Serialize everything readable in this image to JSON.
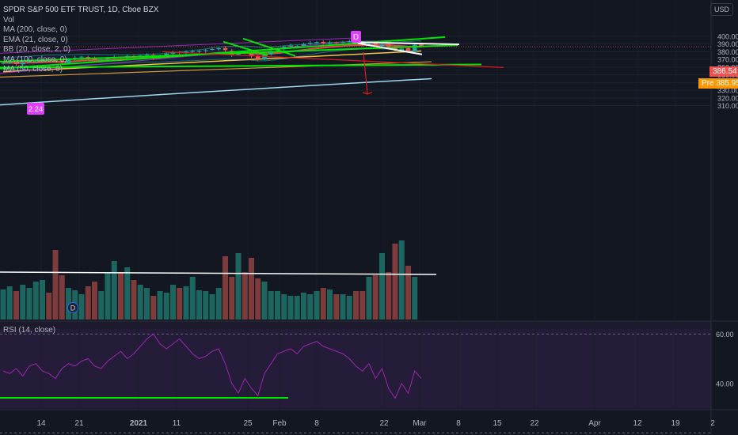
{
  "legend": {
    "title": "SPDR S&P 500 ETF TRUST, 1D, Cboe BZX",
    "vol": "Vol",
    "ma200": "MA (200, close, 0)",
    "ema21": "EMA (21, close, 0)",
    "bb": "BB (20, close, 2, 0)",
    "ma100": "MA (100, close, 0)",
    "ma50": "MA (50, close, 0)"
  },
  "rsi_label": "RSI (14, close)",
  "currency": "USD",
  "last_price": "386.54",
  "pre_price": "385.95",
  "pre_label": "Pre",
  "markers": {
    "dividend_top": "D",
    "dividend_bottom": "D",
    "value_tag": "2.24"
  },
  "colors": {
    "background": "#131722",
    "up": "#26a69a",
    "down": "#ef5350",
    "trend_green": "#00e600",
    "trend_white": "#ffffff",
    "trend_red": "#e0191b",
    "ma200": "#a0d8ef",
    "ma100": "#d19a38",
    "ma50": "#f5c343",
    "ema21": "#e04848",
    "bb_band": "#26a69a",
    "rsi": "#9c27b0",
    "channel_purple": "#9c27b0"
  },
  "chart_data": [
    {
      "type": "candlestick",
      "yaxis_ticks": [
        310,
        320,
        330,
        340,
        350,
        360,
        370,
        380,
        390,
        400
      ],
      "xaxis_ticks": [
        "14",
        "21",
        "2021",
        "11",
        "25",
        "Feb",
        "8",
        "22",
        "Mar",
        "8",
        "15",
        "22",
        "Apr",
        "12",
        "19",
        "2"
      ],
      "ylim": [
        305,
        405
      ],
      "close_series": [
        365.5,
        367,
        364,
        366,
        368,
        367.5,
        369,
        369.5,
        368,
        366,
        370,
        372,
        373.5,
        371,
        369.5,
        370,
        371.5,
        373,
        372,
        374.5,
        373,
        375,
        376,
        372,
        375,
        377.5,
        379,
        378.5,
        380,
        380.5,
        381,
        382,
        383.5,
        384.5,
        382,
        376,
        378,
        378.5,
        374,
        370.5,
        376.5,
        381,
        384,
        386.5,
        388,
        387.5,
        390,
        391.5,
        392.5,
        391,
        392,
        391.5,
        392.5,
        393.5,
        391,
        389.5,
        390,
        387.5,
        389.5,
        386.5,
        382,
        384,
        380.5,
        389,
        386.5
      ]
    },
    {
      "type": "line",
      "title": "RSI (14, close)",
      "yaxis_ticks": [
        40.0,
        60.0
      ]
    }
  ]
}
